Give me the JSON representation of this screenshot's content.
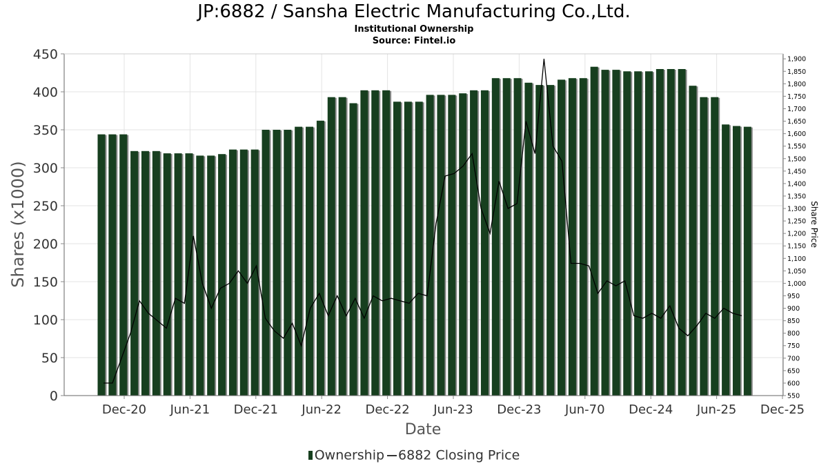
{
  "title": "JP:6882 / Sansha Electric Manufacturing Co.,Ltd.",
  "subtitle": "Institutional Ownership",
  "source": "Source: Fintel.io",
  "legend": {
    "ownership": "Ownership",
    "price": "6882 Closing Price"
  },
  "colors": {
    "bar": "#173f1f",
    "bar_shadow": "#8a8a8a",
    "line": "#000000",
    "grid": "#e3e3e3"
  },
  "chart_data": {
    "type": "bar",
    "xlabel": "Date",
    "ylabel": "Shares (x1000)",
    "y2label": "Share Price",
    "ylim": [
      0,
      450
    ],
    "y2lim": [
      550,
      1920
    ],
    "grid": true,
    "legend_position": "bottom",
    "x_tick_labels": [
      "Dec-20",
      "Jun-21",
      "Dec-21",
      "Jun-22",
      "Dec-22",
      "Jun-23",
      "Dec-23",
      "Jun-70",
      "Dec-24",
      "Jun-25",
      "Dec-25"
    ],
    "y_ticks": [
      0,
      50,
      100,
      150,
      200,
      250,
      300,
      350,
      400,
      450
    ],
    "y2_ticks": [
      550,
      600,
      650,
      700,
      750,
      800,
      850,
      900,
      950,
      1000,
      1050,
      1100,
      1150,
      1200,
      1250,
      1300,
      1350,
      1400,
      1450,
      1500,
      1550,
      1600,
      1650,
      1700,
      1750,
      1800,
      1850,
      1900
    ],
    "y2_tick_labels": [
      "550",
      "600",
      "650",
      "700",
      "750",
      "800",
      "850",
      "900",
      "950",
      "1,000",
      "1,050",
      "1,100",
      "1,150",
      "1,200",
      "1,250",
      "1,300",
      "1,350",
      "1,400",
      "1,450",
      "1,500",
      "1,550",
      "1,600",
      "1,650",
      "1,700",
      "1,750",
      "1,800",
      "1,850",
      "1,900"
    ],
    "series": [
      {
        "name": "Ownership",
        "values": [
          344,
          344,
          344,
          322,
          322,
          322,
          319,
          319,
          319,
          316,
          316,
          318,
          324,
          324,
          324,
          350,
          350,
          350,
          354,
          354,
          362,
          393,
          393,
          385,
          402,
          402,
          402,
          387,
          387,
          387,
          396,
          396,
          396,
          398,
          402,
          402,
          418,
          418,
          418,
          412,
          409,
          409,
          416,
          418,
          418,
          433,
          429,
          429,
          427,
          427,
          427,
          430,
          430,
          430,
          408,
          393,
          393,
          357,
          355,
          354
        ]
      },
      {
        "name": "6882 Closing Price",
        "type": "line",
        "values": [
          600,
          600,
          700,
          800,
          930,
          880,
          850,
          820,
          940,
          920,
          1190,
          1000,
          900,
          980,
          1000,
          1050,
          1000,
          1070,
          860,
          810,
          780,
          840,
          750,
          900,
          960,
          870,
          950,
          870,
          940,
          860,
          950,
          930,
          940,
          930,
          920,
          960,
          950,
          1240,
          1430,
          1440,
          1470,
          1520,
          1300,
          1200,
          1410,
          1300,
          1320,
          1650,
          1520,
          1900,
          1550,
          1490,
          1080,
          1080,
          1070,
          960,
          1010,
          990,
          1010,
          870,
          860,
          880,
          860,
          910,
          820,
          790,
          830,
          880,
          860,
          900,
          880,
          870
        ]
      }
    ]
  }
}
